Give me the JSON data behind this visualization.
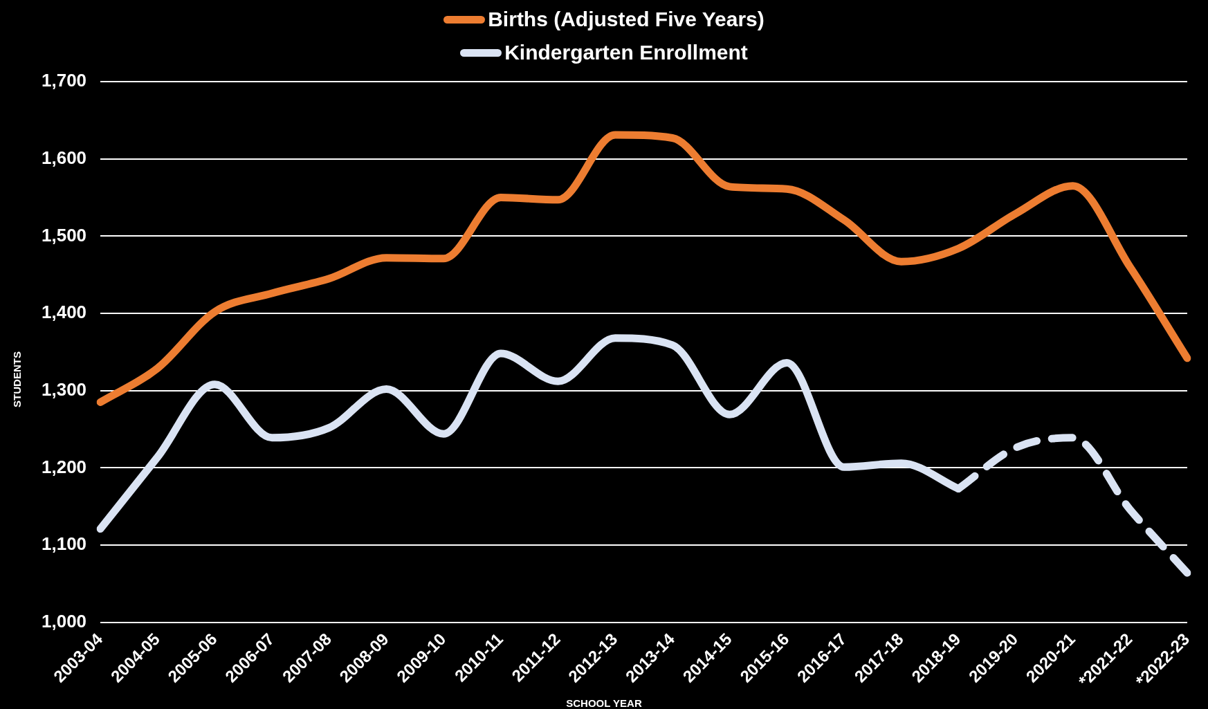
{
  "chart_data": {
    "type": "line",
    "xlabel": "SCHOOL YEAR",
    "ylabel": "STUDENTS",
    "categories": [
      "2003-04",
      "2004-05",
      "2005-06",
      "2006-07",
      "2007-08",
      "2008-09",
      "2009-10",
      "2010-11",
      "2011-12",
      "2012-13",
      "2013-14",
      "2014-15",
      "2015-16",
      "2016-17",
      "2017-18",
      "2018-19",
      "2019-20",
      "2020-21",
      "*2021-22",
      "*2022-23"
    ],
    "series": [
      {
        "name": "Births (Adjusted Five Years)",
        "color": "#ed7d31",
        "line_style": "solid",
        "values": [
          1285,
          1329,
          1402,
          1426,
          1445,
          1472,
          1471,
          1550,
          1547,
          1631,
          1627,
          1564,
          1561,
          1521,
          1467,
          1484,
          1529,
          1565,
          1460,
          1342
        ]
      },
      {
        "name": "Kindergarten Enrollment",
        "color": "#dae3f3",
        "line_style": "solid",
        "values": [
          1121,
          1214,
          1308,
          1239,
          1252,
          1302,
          1244,
          1348,
          1312,
          1368,
          1359,
          1269,
          1336,
          1201,
          1206,
          1173,
          null,
          null,
          null,
          null
        ]
      },
      {
        "color": "#dae3f3",
        "line_style": "dashed",
        "values": [
          null,
          null,
          null,
          null,
          null,
          null,
          null,
          null,
          null,
          null,
          null,
          null,
          null,
          null,
          null,
          1173,
          1226,
          1239,
          1146,
          1064
        ]
      }
    ],
    "ylim": [
      1000,
      1700
    ],
    "yticks": [
      {
        "value": 1000,
        "label": "1,000"
      },
      {
        "value": 1100,
        "label": "1,100"
      },
      {
        "value": 1200,
        "label": "1,200"
      },
      {
        "value": 1300,
        "label": "1,300"
      },
      {
        "value": 1400,
        "label": "1,400"
      },
      {
        "value": 1500,
        "label": "1,500"
      },
      {
        "value": 1600,
        "label": "1,600"
      },
      {
        "value": 1700,
        "label": "1,700"
      }
    ],
    "grid": "y",
    "legend": "top",
    "marker": "none"
  }
}
